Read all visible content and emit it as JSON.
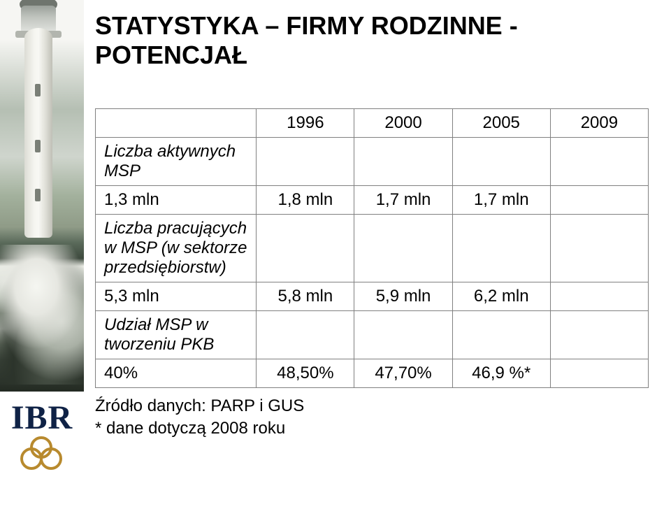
{
  "title_line1": "STATYSTYKA – FIRMY RODZINNE -",
  "title_line2": "POTENCJAŁ",
  "logo_text": "IBR",
  "table": {
    "columns": [
      "",
      "1996",
      "2000",
      "2005",
      "2009"
    ],
    "rows": [
      {
        "label": "Liczba aktywnych MSP",
        "is_header_row": true
      },
      {
        "label": "1,3 mln",
        "cells": [
          "1,8 mln",
          "1,7 mln",
          "1,7 mln"
        ],
        "is_header_row": false
      },
      {
        "label": "Liczba pracujących w MSP (w sektorze przedsiębiorstw)",
        "is_header_row": true
      },
      {
        "label": "5,3 mln",
        "cells": [
          "5,8 mln",
          "5,9 mln",
          "6,2 mln"
        ],
        "is_header_row": false
      },
      {
        "label": "Udział MSP w tworzeniu PKB",
        "is_header_row": true
      },
      {
        "label": "40%",
        "cells": [
          "48,50%",
          "47,70%",
          "46,9 %*"
        ],
        "is_header_row": false
      }
    ],
    "colors": {
      "border": "#808080",
      "text": "#000000"
    },
    "font_size_pt": 18
  },
  "footnote1": "Źródło danych: PARP i GUS",
  "footnote2": "* dane dotyczą 2008 roku",
  "palette": {
    "title_color": "#000000",
    "logo_letter_color": "#0f2246",
    "logo_ring_color": "#b88a2e",
    "background": "#ffffff"
  }
}
